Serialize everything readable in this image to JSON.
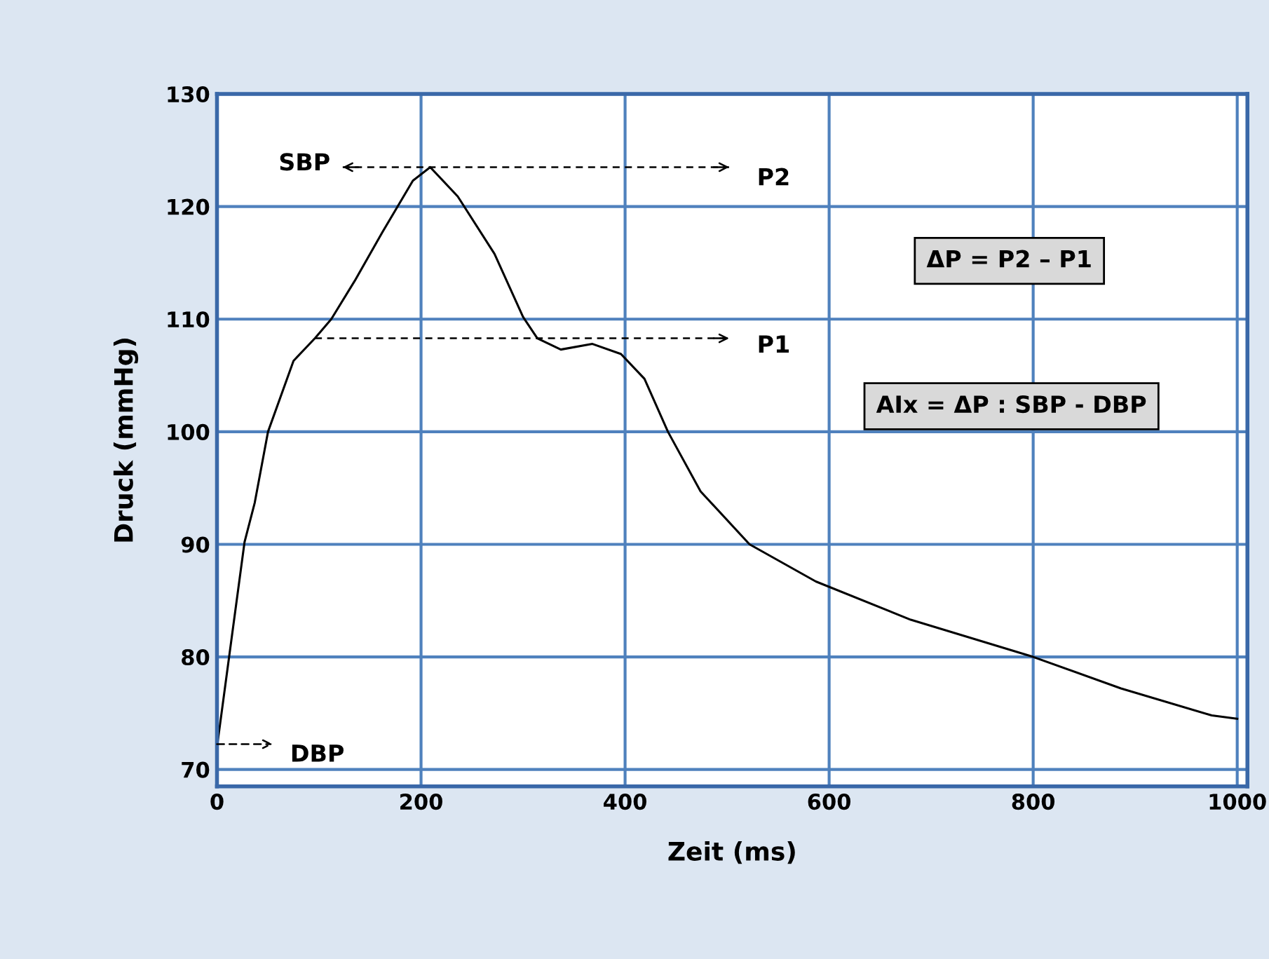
{
  "chart_data": {
    "type": "line",
    "xlabel": "Zeit (ms)",
    "ylabel": "Druck (mmHg)",
    "x": [
      0,
      27,
      37,
      50,
      75,
      96,
      112,
      135,
      162,
      192,
      209,
      236,
      272,
      300,
      314,
      337,
      368,
      396,
      419,
      442,
      474,
      522,
      587,
      680,
      800,
      886,
      975,
      1000
    ],
    "series": [
      {
        "color": "#000000",
        "values": [
          72,
          90.2,
          93.7,
          100,
          106.3,
          108.3,
          110,
          113.4,
          117.7,
          122.3,
          123.5,
          120.9,
          115.8,
          110.2,
          108.3,
          107.3,
          107.8,
          106.9,
          104.7,
          100,
          94.7,
          90,
          86.7,
          83.3,
          80,
          77.2,
          74.8,
          74.5
        ]
      }
    ],
    "xlim": [
      0,
      1010
    ],
    "ylim": [
      68.5,
      130
    ],
    "xticks": [
      0,
      200,
      400,
      600,
      800,
      1000
    ],
    "yticks": [
      70,
      80,
      90,
      100,
      110,
      120,
      130
    ],
    "grid": true,
    "marker": "none",
    "line_style": "solid",
    "ref_lines": [
      {
        "axis": "y",
        "value": 123.5,
        "label": "P2",
        "line_style": "dashed"
      },
      {
        "axis": "y",
        "value": 108.3,
        "label": "P1",
        "line_style": "dashed"
      }
    ],
    "annotations": [
      "SBP",
      "ΔP = P2 – P1",
      "AIx = ΔP : SBP - DBP",
      "DBP"
    ]
  }
}
